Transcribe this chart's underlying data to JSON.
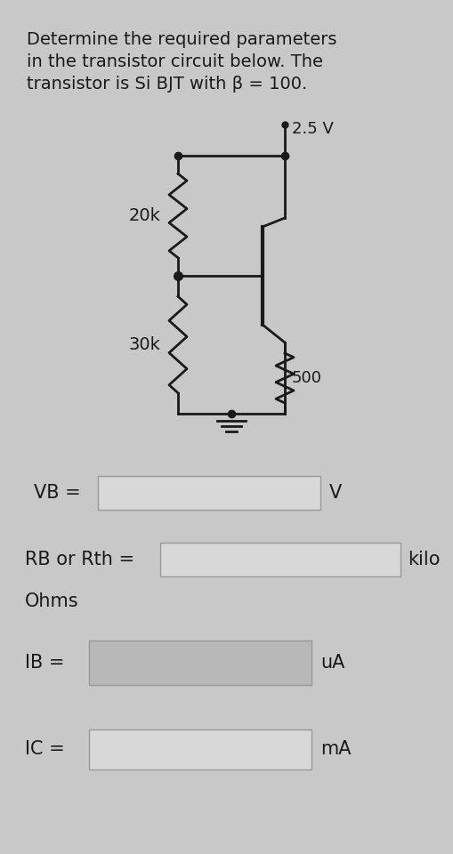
{
  "title_line1": "Determine the required parameters",
  "title_line2": "in the transistor circuit below. The",
  "title_line3": "transistor is Si BJT with β = 100.",
  "voltage_label": "2.5 V",
  "r1_label": "20k",
  "r2_label": "30k",
  "rc_label": "500",
  "vb_label": "VB =",
  "vb_unit": "V",
  "rb_label": "RB or Rth =",
  "rb_unit": "kilo",
  "rb_unit2": "Ohms",
  "ib_label": "IB =",
  "ib_unit": "uA",
  "ic_label": "IC =",
  "ic_unit": "mA",
  "bg_color": "#c8c8c8",
  "text_color": "#1a1a1a",
  "circuit_color": "#1a1a1a",
  "box_color": "#d8d8d8",
  "box_edge": "#999999"
}
